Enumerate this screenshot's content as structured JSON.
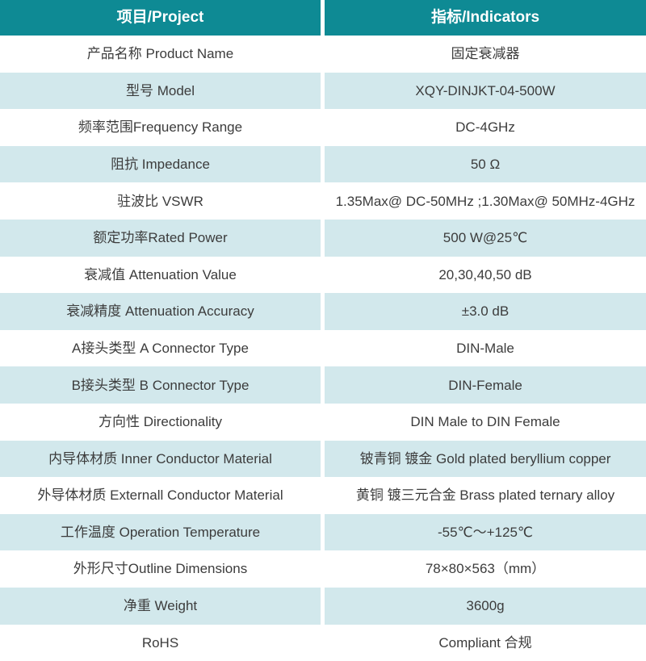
{
  "table": {
    "header": {
      "project": "项目/Project",
      "indicators": "指标/Indicators"
    },
    "rows": [
      {
        "label": "产品名称 Product Name",
        "value": "固定衰减器"
      },
      {
        "label": "型号 Model",
        "value": "XQY-DINJKT-04-500W"
      },
      {
        "label": "频率范围Frequency Range",
        "value": "DC-4GHz"
      },
      {
        "label": "阻抗 Impedance",
        "value": "50 Ω"
      },
      {
        "label": "驻波比 VSWR",
        "value": "1.35Max@ DC-50MHz ;1.30Max@ 50MHz-4GHz"
      },
      {
        "label": "额定功率Rated Power",
        "value": "500 W@25℃"
      },
      {
        "label": "衰减值 Attenuation Value",
        "value": "20,30,40,50 dB"
      },
      {
        "label": "衰减精度 Attenuation Accuracy",
        "value": "±3.0 dB"
      },
      {
        "label": "A接头类型 A Connector Type",
        "value": "DIN-Male"
      },
      {
        "label": "B接头类型 B Connector Type",
        "value": "DIN-Female"
      },
      {
        "label": "方向性 Directionality",
        "value": "DIN Male to DIN Female"
      },
      {
        "label": "内导体材质 Inner Conductor Material",
        "value": "铍青铜 镀金 Gold plated beryllium copper"
      },
      {
        "label": "外导体材质 Externall Conductor Material",
        "value": "黄铜 镀三元合金 Brass plated ternary alloy"
      },
      {
        "label": "工作温度 Operation Temperature",
        "value": "-55℃～+125℃"
      },
      {
        "label": "外形尺寸Outline Dimensions",
        "value": "78×80×563（mm）"
      },
      {
        "label": "净重 Weight",
        "value": "3600g"
      },
      {
        "label": "RoHS",
        "value": "Compliant 合规"
      }
    ]
  },
  "colors": {
    "header_bg": "#0e8a94",
    "header_text": "#ffffff",
    "row_alt_bg": "#d2e8ec",
    "body_text": "#3c3c3c"
  }
}
